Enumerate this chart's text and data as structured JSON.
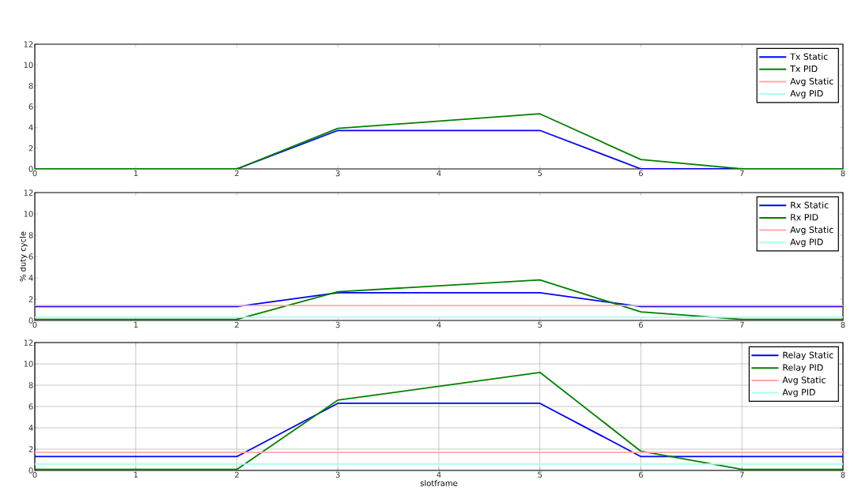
{
  "chart_data": [
    {
      "type": "line",
      "x": [
        0,
        2,
        3,
        5,
        6,
        7,
        8
      ],
      "xlim": [
        0,
        8
      ],
      "ylim": [
        0,
        12
      ],
      "xticks": [
        0,
        1,
        2,
        3,
        4,
        5,
        6,
        7,
        8
      ],
      "yticks": [
        0,
        2,
        4,
        6,
        8,
        10,
        12
      ],
      "grid": false,
      "legend": "top right",
      "series": [
        {
          "name": "Tx Static",
          "color": "#0000ff",
          "values": [
            0,
            0,
            3.7,
            3.7,
            0,
            0,
            0
          ]
        },
        {
          "name": "Tx PID",
          "color": "#008000",
          "values": [
            0,
            0,
            3.9,
            5.3,
            0.9,
            0,
            0
          ]
        },
        {
          "name": "Avg Static",
          "color": "#ffaaaa",
          "values": [
            null,
            null,
            null,
            null,
            null,
            null,
            null
          ]
        },
        {
          "name": "Avg PID",
          "color": "#aaffee",
          "values": [
            null,
            null,
            null,
            null,
            null,
            null,
            null
          ]
        }
      ]
    },
    {
      "type": "line",
      "x": [
        0,
        2,
        3,
        5,
        6,
        7,
        8
      ],
      "xlim": [
        0,
        8
      ],
      "ylim": [
        0,
        12
      ],
      "xticks": [
        0,
        1,
        2,
        3,
        4,
        5,
        6,
        7,
        8
      ],
      "yticks": [
        0,
        2,
        4,
        6,
        8,
        10,
        12
      ],
      "grid": false,
      "legend": "top right",
      "ylabel": "% duty cycle",
      "series": [
        {
          "name": "Rx Static",
          "color": "#0000ff",
          "values": [
            1.3,
            1.3,
            2.6,
            2.6,
            1.3,
            1.3,
            1.3
          ]
        },
        {
          "name": "Rx PID",
          "color": "#008000",
          "values": [
            0.1,
            0.1,
            2.7,
            3.8,
            0.8,
            0.1,
            0.1
          ]
        },
        {
          "name": "Avg Static",
          "color": "#ffaaaa",
          "values": [
            1.4,
            1.4,
            1.4,
            1.4,
            1.4,
            1.4,
            1.4
          ]
        },
        {
          "name": "Avg PID",
          "color": "#aaffee",
          "values": [
            0.3,
            0.3,
            0.3,
            0.3,
            0.3,
            0.3,
            0.3
          ]
        }
      ]
    },
    {
      "type": "line",
      "x": [
        0,
        2,
        3,
        5,
        6,
        7,
        8
      ],
      "xlim": [
        0,
        8
      ],
      "ylim": [
        0,
        12
      ],
      "xticks": [
        0,
        1,
        2,
        3,
        4,
        5,
        6,
        7,
        8
      ],
      "yticks": [
        0,
        2,
        4,
        6,
        8,
        10,
        12
      ],
      "grid": true,
      "legend": "top right",
      "xlabel": "slotframe",
      "series": [
        {
          "name": "Relay Static",
          "color": "#0000ff",
          "values": [
            1.3,
            1.3,
            6.3,
            6.3,
            1.3,
            1.3,
            1.3
          ]
        },
        {
          "name": "Relay PID",
          "color": "#008000",
          "values": [
            0.1,
            0.1,
            6.6,
            9.2,
            1.8,
            0.1,
            0.1
          ]
        },
        {
          "name": "Avg Static",
          "color": "#ffaaaa",
          "values": [
            1.7,
            1.7,
            1.7,
            1.7,
            1.7,
            1.7,
            1.7
          ]
        },
        {
          "name": "Avg PID",
          "color": "#aaffee",
          "values": [
            0.6,
            0.6,
            0.6,
            0.6,
            0.6,
            0.6,
            0.6
          ]
        }
      ]
    }
  ]
}
